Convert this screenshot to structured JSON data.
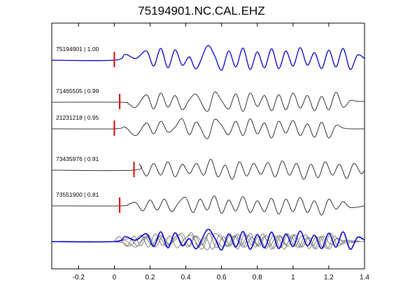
{
  "chart_data": {
    "type": "line",
    "title": "75194901.NC.CAL.EHZ",
    "xlabel": "",
    "ylabel": "",
    "xlim": [
      -0.35,
      1.4
    ],
    "xticks": [
      -0.2,
      0,
      0.2,
      0.4,
      0.6,
      0.8,
      1,
      1.2,
      1.4
    ],
    "xtick_labels": [
      "-0.2",
      "0",
      "0.2",
      "0.4",
      "0.6",
      "0.8",
      "1",
      "1.2",
      "1.4"
    ],
    "grid": false,
    "colors": {
      "reference": "#0000cc",
      "other": "#333333",
      "pick": "#dd0000",
      "overlay_other": "#777777"
    },
    "traces": [
      {
        "label": "75194901 | 1.00",
        "pick_time": 0.0,
        "color": "#0000cc",
        "x": [
          -0.35,
          0.0,
          0.06,
          0.12,
          0.18,
          0.22,
          0.26,
          0.3,
          0.34,
          0.38,
          0.42,
          0.46,
          0.52,
          0.56,
          0.6,
          0.64,
          0.68,
          0.72,
          0.76,
          0.8,
          0.84,
          0.88,
          0.92,
          0.96,
          1.0,
          1.04,
          1.08,
          1.12,
          1.16,
          1.2,
          1.24,
          1.28,
          1.32,
          1.36,
          1.4
        ],
        "y": [
          0.0,
          0.0,
          0.35,
          0.1,
          0.55,
          -0.35,
          0.7,
          -0.45,
          0.62,
          -0.3,
          0.2,
          -0.5,
          0.85,
          0.3,
          -0.6,
          0.55,
          -0.4,
          0.72,
          -0.55,
          0.5,
          -0.45,
          0.68,
          -0.5,
          0.55,
          -0.35,
          0.75,
          -0.3,
          0.45,
          -0.5,
          0.6,
          -0.4,
          0.7,
          -0.55,
          0.3,
          0.1
        ]
      },
      {
        "label": "71465505 | 0.99",
        "pick_time": 0.03,
        "color": "#333333",
        "x": [
          -0.35,
          0.03,
          0.08,
          0.12,
          0.18,
          0.22,
          0.26,
          0.3,
          0.34,
          0.38,
          0.42,
          0.46,
          0.52,
          0.56,
          0.6,
          0.64,
          0.68,
          0.72,
          0.76,
          0.8,
          0.84,
          0.88,
          0.92,
          0.96,
          1.0,
          1.04,
          1.08,
          1.12,
          1.16,
          1.2,
          1.24,
          1.28,
          1.32,
          1.36,
          1.4
        ],
        "y": [
          0.0,
          0.0,
          -0.1,
          -0.3,
          0.45,
          -0.4,
          0.55,
          -0.3,
          0.4,
          -0.45,
          0.15,
          0.45,
          -0.55,
          0.6,
          0.1,
          -0.4,
          0.5,
          -0.55,
          0.55,
          -0.25,
          0.4,
          -0.5,
          0.45,
          -0.45,
          0.55,
          -0.35,
          0.4,
          -0.5,
          0.35,
          -0.45,
          0.6,
          -0.3,
          0.1,
          0.05,
          0.05
        ]
      },
      {
        "label": "21231218 | 0.95",
        "pick_time": 0.0,
        "color": "#333333",
        "x": [
          -0.35,
          0.0,
          0.06,
          0.12,
          0.18,
          0.22,
          0.26,
          0.3,
          0.34,
          0.38,
          0.42,
          0.46,
          0.52,
          0.56,
          0.6,
          0.64,
          0.68,
          0.72,
          0.76,
          0.8,
          0.84,
          0.88,
          0.92,
          0.96,
          1.0,
          1.04,
          1.08,
          1.12,
          1.16,
          1.2,
          1.24,
          1.28,
          1.32,
          1.36,
          1.4
        ],
        "y": [
          0.0,
          0.0,
          0.1,
          -0.4,
          0.35,
          -0.3,
          0.45,
          -0.2,
          0.1,
          0.6,
          -0.35,
          0.4,
          -0.6,
          0.55,
          0.2,
          -0.35,
          0.45,
          -0.4,
          0.6,
          -0.3,
          0.35,
          -0.55,
          0.45,
          -0.25,
          0.5,
          -0.4,
          0.3,
          -0.5,
          0.4,
          -0.55,
          0.2,
          0.05,
          0.0,
          0.0,
          0.0
        ]
      },
      {
        "label": "73435976 | 0.91",
        "pick_time": 0.11,
        "color": "#333333",
        "x": [
          -0.35,
          0.11,
          0.14,
          0.18,
          0.22,
          0.26,
          0.3,
          0.34,
          0.38,
          0.42,
          0.46,
          0.5,
          0.54,
          0.58,
          0.62,
          0.66,
          0.7,
          0.74,
          0.78,
          0.82,
          0.86,
          0.9,
          0.94,
          0.98,
          1.02,
          1.06,
          1.1,
          1.14,
          1.18,
          1.22,
          1.26,
          1.3,
          1.34,
          1.38,
          1.4
        ],
        "y": [
          0.0,
          0.0,
          0.35,
          -0.35,
          0.4,
          -0.3,
          0.5,
          -0.4,
          0.35,
          -0.2,
          0.4,
          -0.3,
          0.65,
          -0.4,
          0.3,
          -0.55,
          0.5,
          -0.35,
          0.4,
          -0.25,
          0.45,
          -0.4,
          0.55,
          -0.3,
          0.4,
          -0.55,
          0.35,
          -0.45,
          0.5,
          -0.3,
          0.35,
          -0.5,
          0.4,
          -0.2,
          0.0
        ]
      },
      {
        "label": "73551900 | 0.81",
        "pick_time": 0.03,
        "color": "#333333",
        "x": [
          -0.35,
          0.03,
          0.08,
          0.12,
          0.16,
          0.2,
          0.24,
          0.28,
          0.32,
          0.36,
          0.4,
          0.44,
          0.48,
          0.52,
          0.56,
          0.6,
          0.64,
          0.68,
          0.72,
          0.76,
          0.8,
          0.84,
          0.88,
          0.92,
          0.96,
          1.0,
          1.04,
          1.08,
          1.12,
          1.16,
          1.2,
          1.24,
          1.28,
          1.32,
          1.4
        ],
        "y": [
          0.0,
          0.0,
          0.1,
          0.2,
          -0.3,
          0.35,
          -0.25,
          0.4,
          -0.35,
          0.2,
          0.5,
          -0.4,
          0.4,
          -0.25,
          0.6,
          -0.45,
          0.35,
          -0.3,
          0.55,
          -0.4,
          0.3,
          -0.35,
          0.45,
          -0.5,
          0.4,
          -0.35,
          0.5,
          -0.4,
          0.3,
          -0.55,
          0.4,
          -0.2,
          0.25,
          -0.1,
          0.0
        ]
      }
    ]
  }
}
